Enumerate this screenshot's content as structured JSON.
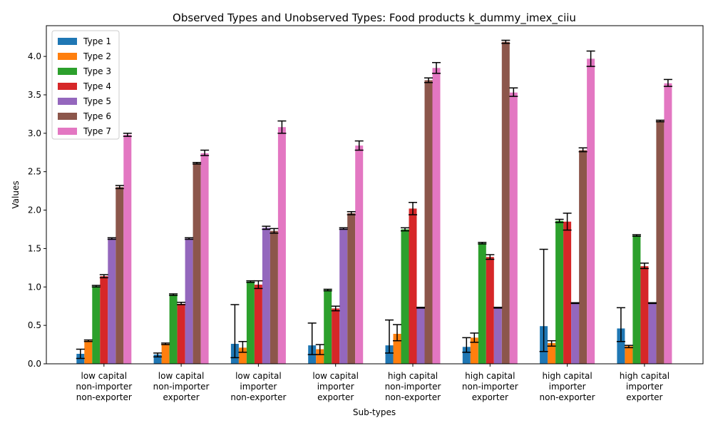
{
  "chart_data": {
    "type": "bar",
    "title": "Observed Types and Unobserved Types: Food products k_dummy_imex_ciiu",
    "xlabel": "Sub-types",
    "ylabel": "Values",
    "ylim": [
      0,
      4.4
    ],
    "yticks": [
      "0.0",
      "0.5",
      "1.0",
      "1.5",
      "2.0",
      "2.5",
      "3.0",
      "3.5",
      "4.0"
    ],
    "grid": false,
    "legend_position": "top-left",
    "categories": [
      [
        "low capital",
        "non-importer",
        "non-exporter"
      ],
      [
        "low capital",
        "non-importer",
        "exporter"
      ],
      [
        "low capital",
        "importer",
        "non-exporter"
      ],
      [
        "low capital",
        "importer",
        "exporter"
      ],
      [
        "high capital",
        "non-importer",
        "non-exporter"
      ],
      [
        "high capital",
        "non-importer",
        "exporter"
      ],
      [
        "high capital",
        "importer",
        "non-exporter"
      ],
      [
        "high capital",
        "importer",
        "exporter"
      ]
    ],
    "series": [
      {
        "name": "Type 1",
        "color": "#1f77b4",
        "values": [
          0.13,
          0.12,
          0.26,
          0.24,
          0.24,
          0.22,
          0.49,
          0.46
        ],
        "err_low": [
          0.07,
          0.09,
          0.08,
          0.12,
          0.14,
          0.15,
          0.16,
          0.29
        ],
        "err_high": [
          0.19,
          0.14,
          0.77,
          0.53,
          0.57,
          0.34,
          1.49,
          0.73
        ]
      },
      {
        "name": "Type 2",
        "color": "#ff7f0e",
        "values": [
          0.3,
          0.26,
          0.21,
          0.19,
          0.39,
          0.34,
          0.27,
          0.23
        ],
        "err_low": [
          0.29,
          0.25,
          0.15,
          0.12,
          0.3,
          0.28,
          0.23,
          0.21
        ],
        "err_high": [
          0.31,
          0.27,
          0.29,
          0.25,
          0.51,
          0.4,
          0.3,
          0.24
        ]
      },
      {
        "name": "Type 3",
        "color": "#2ca02c",
        "values": [
          1.01,
          0.9,
          1.07,
          0.96,
          1.75,
          1.57,
          1.86,
          1.67
        ],
        "err_low": [
          1.0,
          0.89,
          1.06,
          0.95,
          1.73,
          1.56,
          1.84,
          1.66
        ],
        "err_high": [
          1.02,
          0.91,
          1.08,
          0.97,
          1.77,
          1.58,
          1.88,
          1.68
        ]
      },
      {
        "name": "Type 4",
        "color": "#d62728",
        "values": [
          1.14,
          0.78,
          1.03,
          0.72,
          2.02,
          1.39,
          1.85,
          1.27
        ],
        "err_low": [
          1.12,
          0.77,
          0.98,
          0.69,
          1.94,
          1.36,
          1.74,
          1.24
        ],
        "err_high": [
          1.16,
          0.8,
          1.08,
          0.75,
          2.1,
          1.42,
          1.96,
          1.31
        ]
      },
      {
        "name": "Type 5",
        "color": "#9467bd",
        "values": [
          1.63,
          1.63,
          1.77,
          1.76,
          0.73,
          0.73,
          0.79,
          0.79
        ],
        "err_low": [
          1.62,
          1.62,
          1.75,
          1.75,
          0.725,
          0.725,
          0.785,
          0.785
        ],
        "err_high": [
          1.64,
          1.64,
          1.79,
          1.77,
          0.735,
          0.735,
          0.795,
          0.795
        ]
      },
      {
        "name": "Type 6",
        "color": "#8c564b",
        "values": [
          2.3,
          2.61,
          1.73,
          1.96,
          3.69,
          4.19,
          2.78,
          3.16
        ],
        "err_low": [
          2.28,
          2.6,
          1.7,
          1.94,
          3.66,
          4.17,
          2.76,
          3.15
        ],
        "err_high": [
          2.32,
          2.62,
          1.76,
          1.98,
          3.72,
          4.21,
          2.81,
          3.17
        ]
      },
      {
        "name": "Type 7",
        "color": "#e377c2",
        "values": [
          2.98,
          2.74,
          3.08,
          2.84,
          3.85,
          3.53,
          3.97,
          3.65
        ],
        "err_low": [
          2.96,
          2.71,
          3.0,
          2.78,
          3.78,
          3.48,
          3.87,
          3.61
        ],
        "err_high": [
          3.0,
          2.78,
          3.16,
          2.9,
          3.92,
          3.59,
          4.07,
          3.7
        ]
      }
    ]
  }
}
